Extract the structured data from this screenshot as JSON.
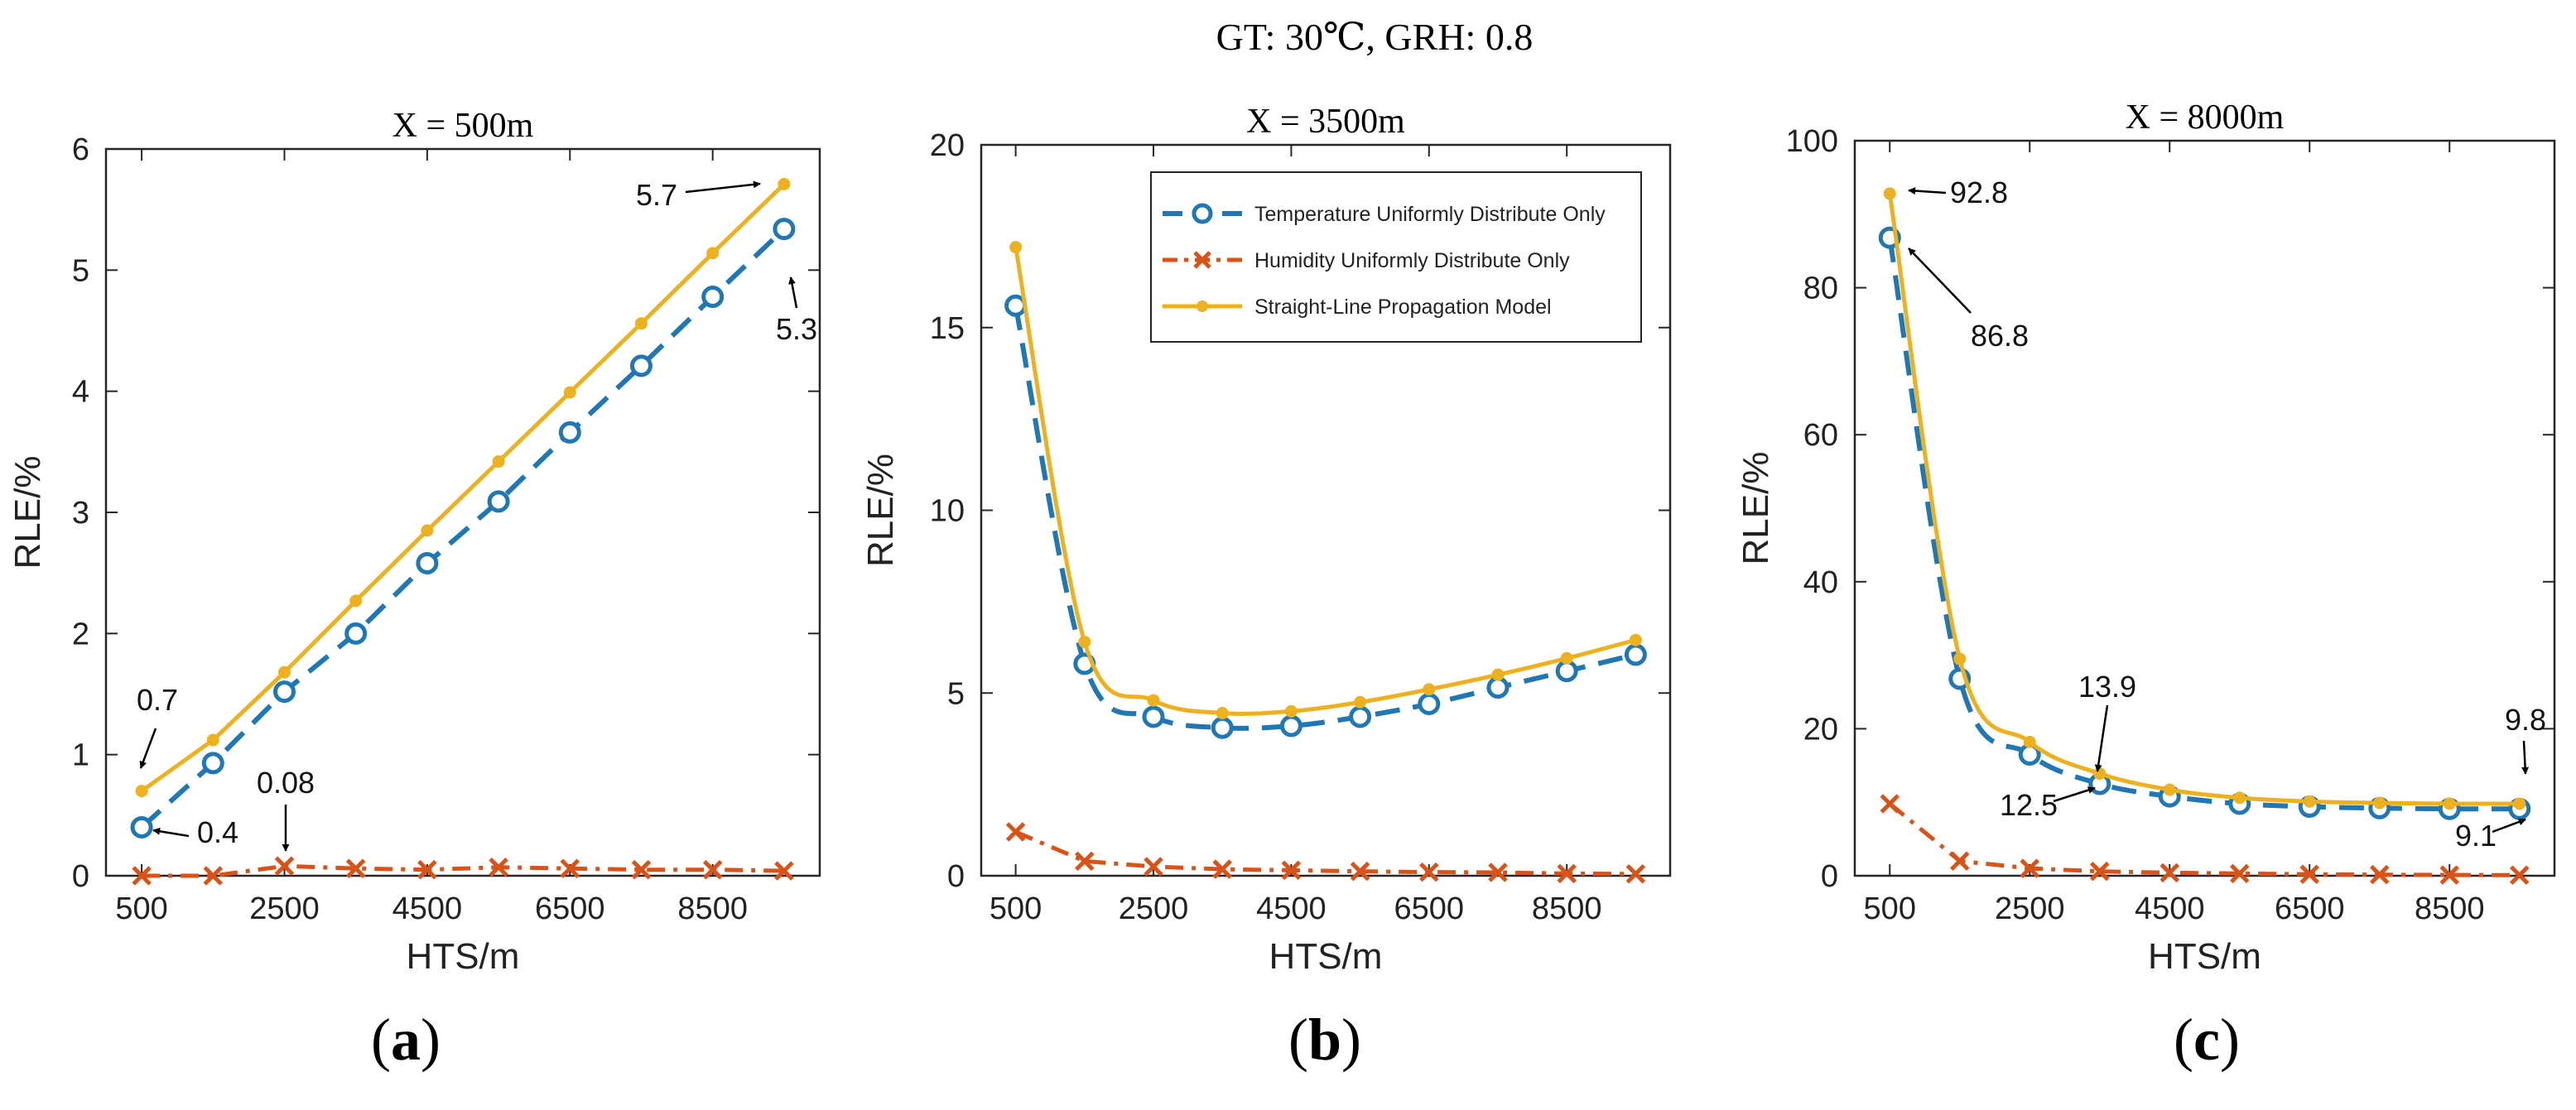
{
  "figure": {
    "suptitle": "GT: 30℃, GRH: 0.8"
  },
  "colors": {
    "temperature": "#1f77b4",
    "humidity": "#d95319",
    "straight": "#edb120",
    "axis": "#262626",
    "arrow": "#000000"
  },
  "chart_data": [
    {
      "type": "line",
      "panel_label": "(a)",
      "panel_letter": "a",
      "title": "X = 500m",
      "xlabel": "HTS/m",
      "ylabel": "RLE/%",
      "xlim": [
        0,
        10000
      ],
      "ylim": [
        0,
        6
      ],
      "xticks": [
        500,
        2500,
        4500,
        6500,
        8500
      ],
      "yticks": [
        0,
        1,
        2,
        3,
        4,
        5,
        6
      ],
      "x": [
        500,
        1500,
        2500,
        3500,
        4500,
        5500,
        6500,
        7500,
        8500,
        9500
      ],
      "series": [
        {
          "name": "Temperature Uniformly Distribute Only",
          "key": "temperature",
          "values": [
            0.4,
            0.93,
            1.52,
            2.0,
            2.58,
            3.09,
            3.66,
            4.21,
            4.78,
            5.34
          ]
        },
        {
          "name": "Humidity Uniformly Distribute Only",
          "key": "humidity",
          "values": [
            0.0,
            0.0,
            0.08,
            0.06,
            0.05,
            0.07,
            0.06,
            0.05,
            0.05,
            0.04
          ]
        },
        {
          "name": "Straight-Line Propagation Model",
          "key": "straight",
          "values": [
            0.7,
            1.12,
            1.68,
            2.27,
            2.85,
            3.42,
            3.99,
            4.56,
            5.14,
            5.71
          ]
        }
      ],
      "annotations": [
        {
          "text": "5.7",
          "x": 9500,
          "y": 5.71
        },
        {
          "text": "5.3",
          "x": 9500,
          "y": 5.34
        },
        {
          "text": "0.7",
          "x": 500,
          "y": 0.7
        },
        {
          "text": "0.4",
          "x": 500,
          "y": 0.4
        },
        {
          "text": "0.08",
          "x": 2500,
          "y": 0.08
        }
      ]
    },
    {
      "type": "line",
      "panel_label": "(b)",
      "panel_letter": "b",
      "title": "X = 3500m",
      "xlabel": "HTS/m",
      "ylabel": "RLE/%",
      "xlim": [
        0,
        10000
      ],
      "ylim": [
        0,
        20
      ],
      "xticks": [
        500,
        2500,
        4500,
        6500,
        8500
      ],
      "yticks": [
        0,
        5,
        10,
        15,
        20
      ],
      "legend_position": "top-right",
      "x": [
        500,
        1500,
        2500,
        3500,
        4500,
        5500,
        6500,
        7500,
        8500,
        9500
      ],
      "series": [
        {
          "name": "Temperature Uniformly Distribute Only",
          "key": "temperature",
          "values": [
            15.6,
            5.8,
            4.35,
            4.05,
            4.1,
            4.35,
            4.7,
            5.15,
            5.6,
            6.05
          ]
        },
        {
          "name": "Humidity Uniformly Distribute Only",
          "key": "humidity",
          "values": [
            1.2,
            0.4,
            0.25,
            0.18,
            0.15,
            0.12,
            0.1,
            0.09,
            0.06,
            0.05
          ]
        },
        {
          "name": "Straight-Line Propagation Model",
          "key": "straight",
          "values": [
            17.2,
            6.4,
            4.8,
            4.45,
            4.5,
            4.75,
            5.1,
            5.5,
            5.95,
            6.45
          ]
        }
      ],
      "annotations": []
    },
    {
      "type": "line",
      "panel_label": "(c)",
      "panel_letter": "c",
      "title": "X = 8000m",
      "xlabel": "HTS/m",
      "ylabel": "RLE/%",
      "xlim": [
        0,
        10000
      ],
      "ylim": [
        0,
        100
      ],
      "xticks": [
        500,
        2500,
        4500,
        6500,
        8500
      ],
      "yticks": [
        0,
        20,
        40,
        60,
        80,
        100
      ],
      "x": [
        500,
        1500,
        2500,
        3500,
        4500,
        5500,
        6500,
        7500,
        8500,
        9500
      ],
      "series": [
        {
          "name": "Temperature Uniformly Distribute Only",
          "key": "temperature",
          "values": [
            86.8,
            26.8,
            16.5,
            12.5,
            10.8,
            9.8,
            9.4,
            9.2,
            9.1,
            9.1
          ]
        },
        {
          "name": "Humidity Uniformly Distribute Only",
          "key": "humidity",
          "values": [
            9.8,
            2.0,
            1.0,
            0.6,
            0.4,
            0.3,
            0.2,
            0.15,
            0.1,
            0.08
          ]
        },
        {
          "name": "Straight-Line Propagation Model",
          "key": "straight",
          "values": [
            92.8,
            29.5,
            18.2,
            13.9,
            11.7,
            10.6,
            10.1,
            9.9,
            9.8,
            9.8
          ]
        }
      ],
      "annotations": [
        {
          "text": "92.8",
          "x": 500,
          "y": 92.8
        },
        {
          "text": "86.8",
          "x": 500,
          "y": 86.8
        },
        {
          "text": "13.9",
          "x": 3500,
          "y": 13.9
        },
        {
          "text": "12.5",
          "x": 3500,
          "y": 12.5
        },
        {
          "text": "9.8",
          "x": 9500,
          "y": 9.8
        },
        {
          "text": "9.1",
          "x": 9500,
          "y": 9.1
        }
      ]
    }
  ]
}
